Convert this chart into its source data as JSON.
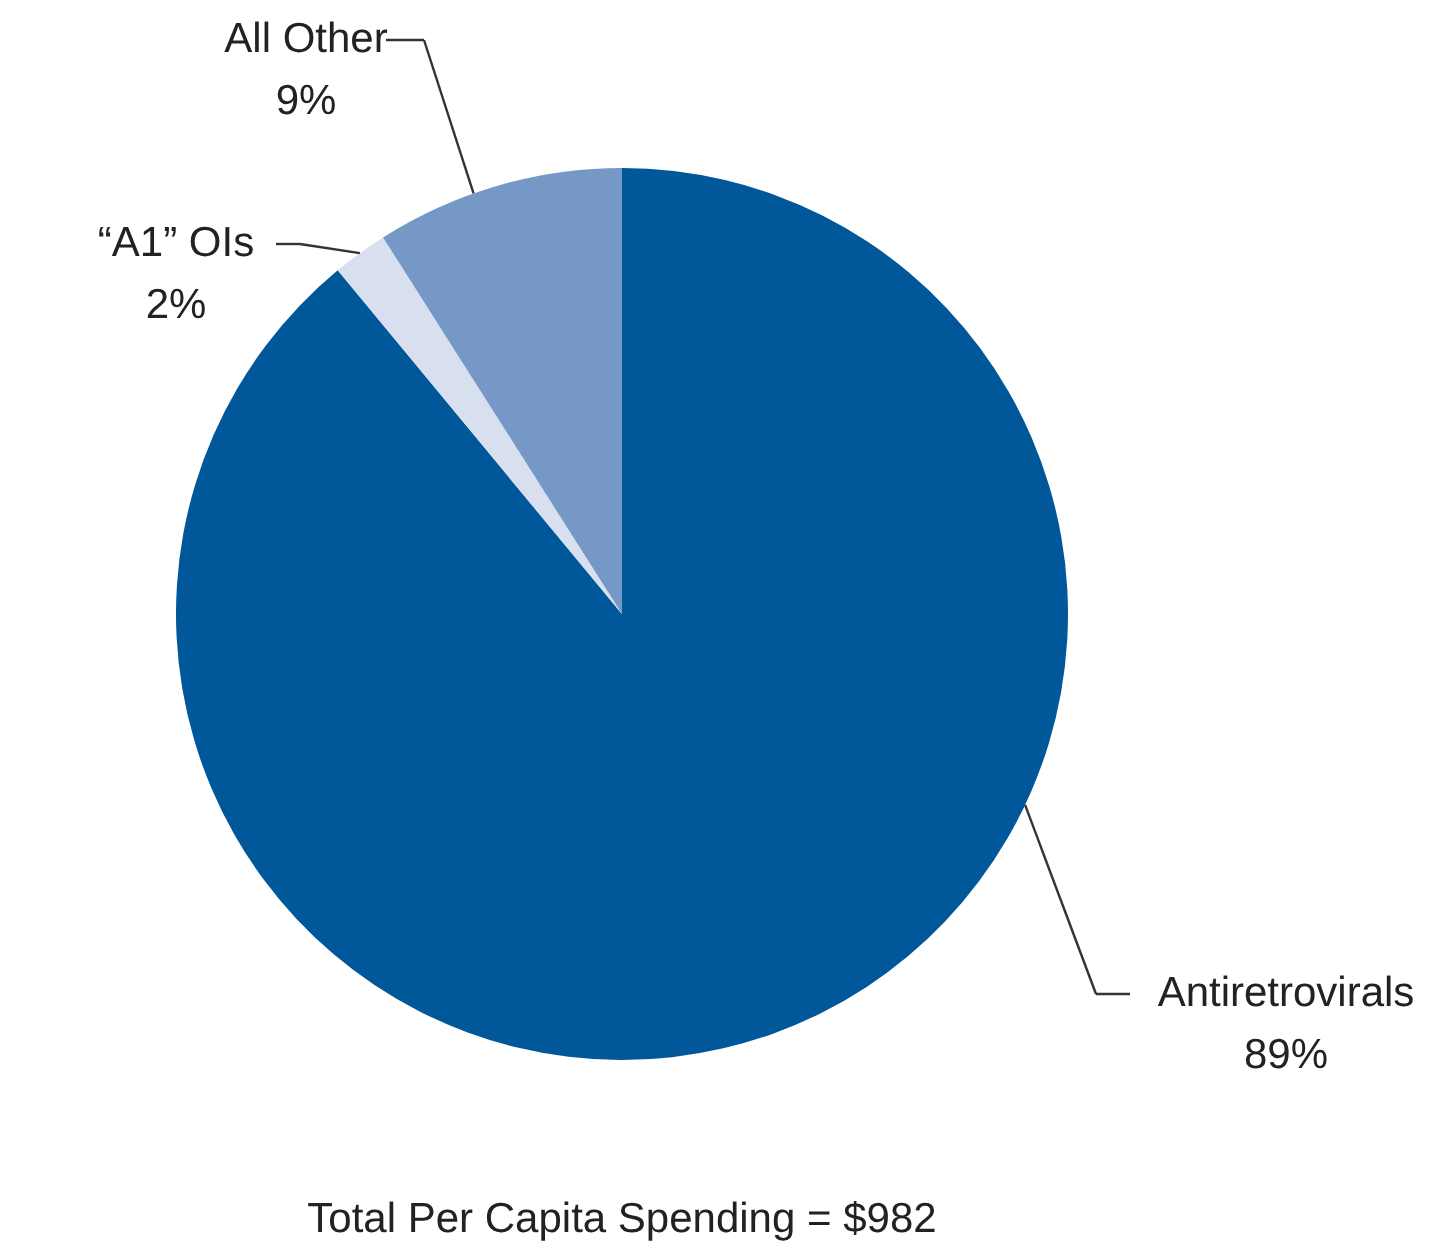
{
  "chart_data": {
    "type": "pie",
    "categories": [
      "Antiretrovirals",
      "“A1” OIs",
      "All Other"
    ],
    "values": [
      89,
      2,
      9
    ],
    "colors": [
      "#00589b",
      "#d8e0ef",
      "#7698c6"
    ],
    "value_labels": [
      "89%",
      "2%",
      "9%"
    ],
    "annotations": [
      "Total Per Capita Spending = $982"
    ]
  }
}
